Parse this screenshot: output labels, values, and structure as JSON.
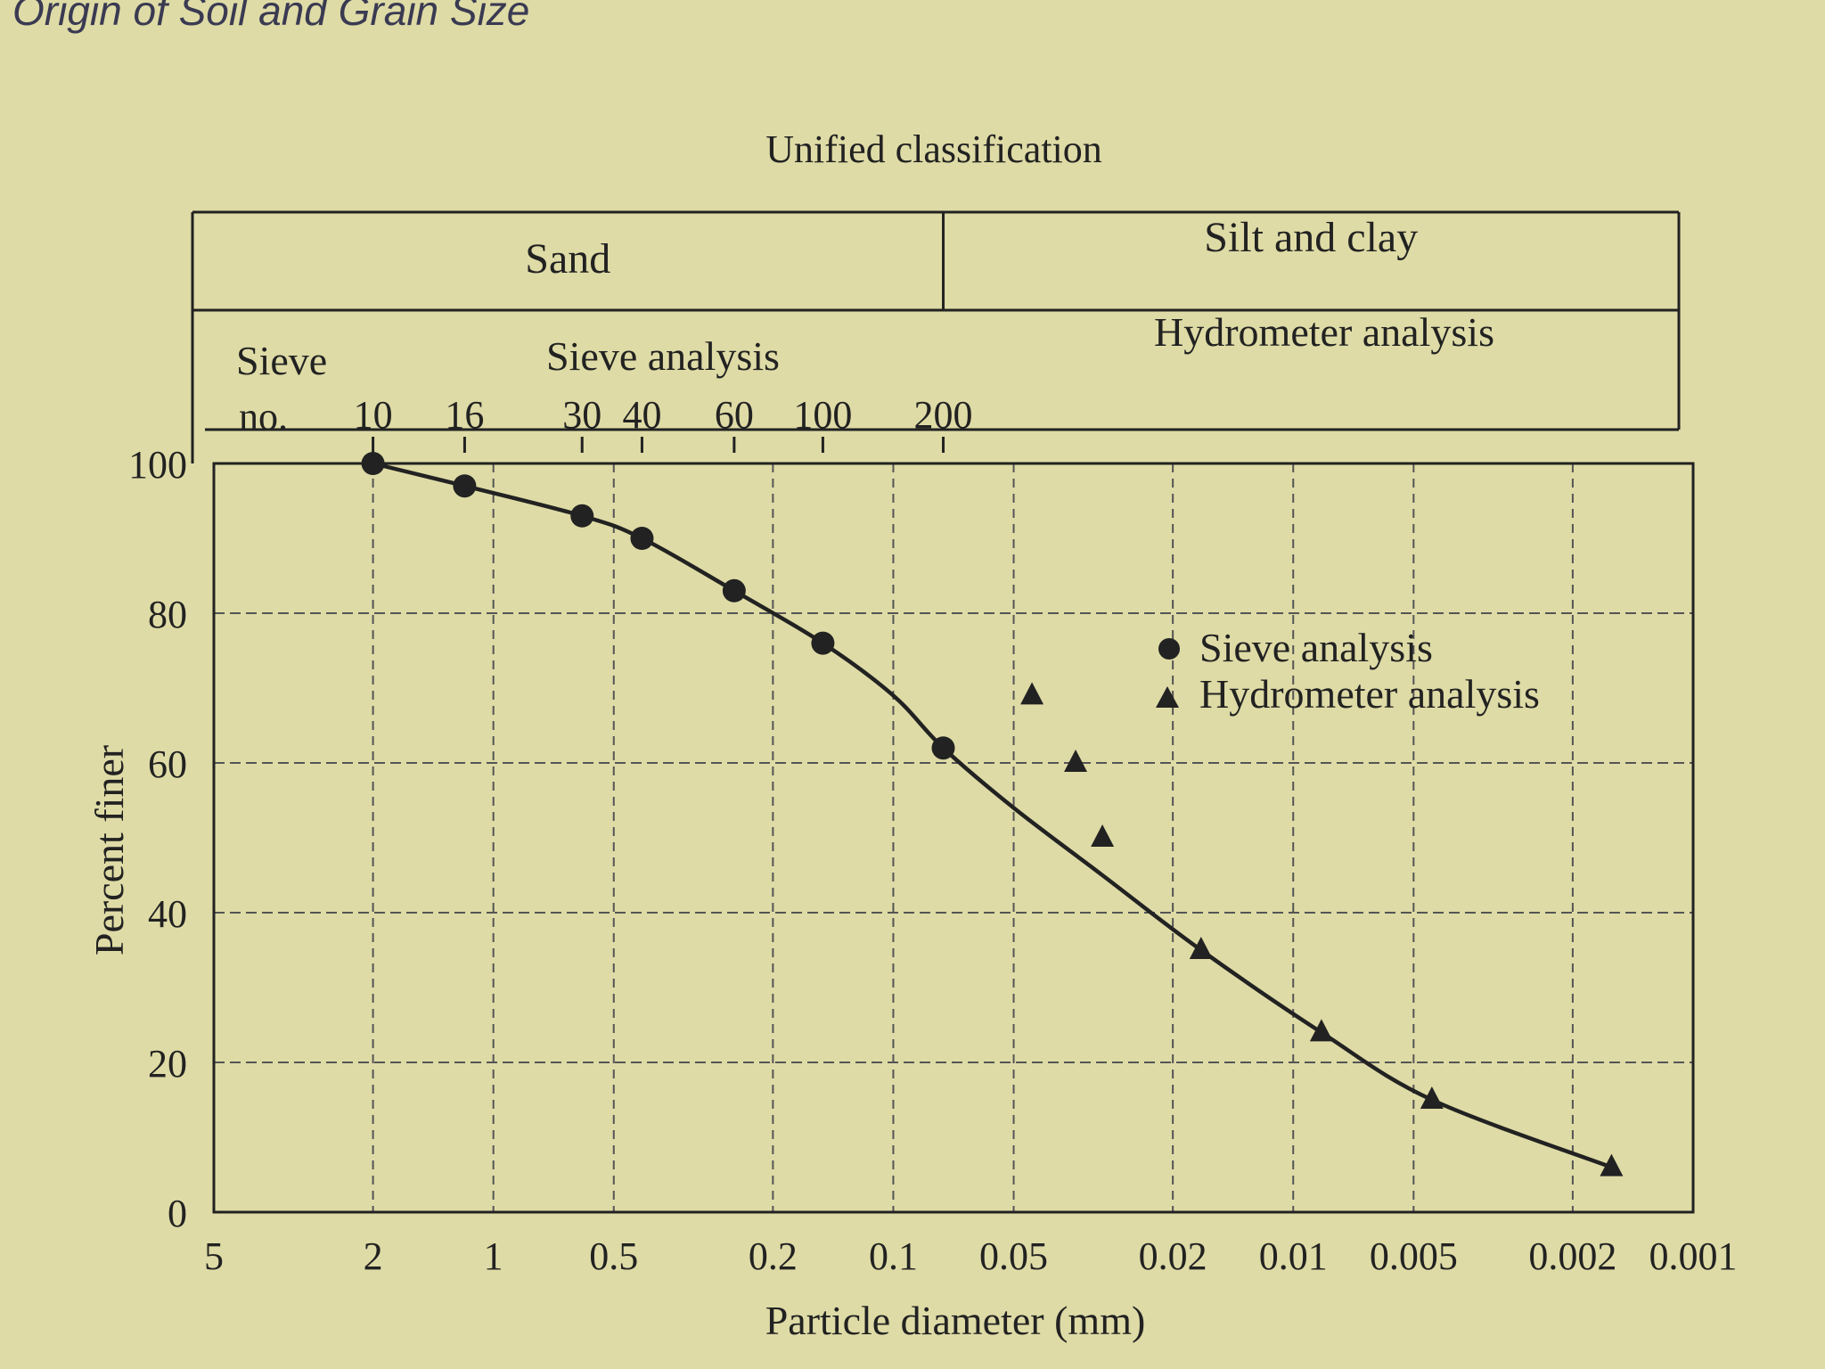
{
  "page_heading": "Origin of Soil and Grain Size",
  "colors": {
    "paper": "#dedba6",
    "ink": "#222222",
    "grid": "#555555"
  },
  "chart_data": {
    "type": "scatter",
    "title": "",
    "xlabel": "Particle diameter (mm)",
    "ylabel": "Percent finer",
    "x_scale": "log",
    "x_reversed": true,
    "xlim": [
      5,
      0.001
    ],
    "ylim": [
      0,
      100
    ],
    "x_ticks": [
      5,
      2,
      1,
      0.5,
      0.2,
      0.1,
      0.05,
      0.02,
      0.01,
      0.005,
      0.002,
      0.001
    ],
    "x_tick_labels": [
      "5",
      "2",
      "1",
      "0.5",
      "0.2",
      "0.1",
      "0.05",
      "0.02",
      "0.01",
      "0.005",
      "0.002",
      "0.001"
    ],
    "y_ticks": [
      0,
      20,
      40,
      60,
      80,
      100
    ],
    "y_tick_labels": [
      "0",
      "20",
      "40",
      "60",
      "80",
      "100"
    ],
    "grid": true,
    "legend_position": "right, upper middle",
    "classification": {
      "title": "Unified classification",
      "zones": [
        {
          "label": "Sand",
          "from": 5,
          "to": 0.075
        },
        {
          "label": "Silt and clay",
          "from": 0.075,
          "to": 0.001
        }
      ],
      "sieve_row_title": "Sieve",
      "sieve_no_label": "no.",
      "sieve_analysis_label": "Sieve analysis",
      "hydrometer_analysis_label": "Hydrometer analysis",
      "sieves": [
        {
          "no": "10",
          "opening_mm": 2.0
        },
        {
          "no": "16",
          "opening_mm": 1.18
        },
        {
          "no": "30",
          "opening_mm": 0.6
        },
        {
          "no": "40",
          "opening_mm": 0.425
        },
        {
          "no": "60",
          "opening_mm": 0.25
        },
        {
          "no": "100",
          "opening_mm": 0.15
        },
        {
          "no": "200",
          "opening_mm": 0.075
        }
      ]
    },
    "series": [
      {
        "name": "Sieve analysis",
        "marker": "circle",
        "x": [
          2.0,
          1.18,
          0.6,
          0.425,
          0.25,
          0.15,
          0.075
        ],
        "y": [
          100,
          97,
          93,
          90,
          83,
          76,
          62
        ]
      },
      {
        "name": "Hydrometer analysis",
        "marker": "triangle",
        "x": [
          0.045,
          0.035,
          0.03,
          0.017,
          0.0085,
          0.0045,
          0.0016
        ],
        "y": [
          69,
          60,
          50,
          35,
          24,
          15,
          6
        ]
      }
    ],
    "curve": {
      "x": [
        2.0,
        1.18,
        0.6,
        0.425,
        0.25,
        0.15,
        0.1,
        0.075,
        0.05,
        0.03,
        0.017,
        0.0085,
        0.0045,
        0.0016
      ],
      "y": [
        100,
        97,
        93,
        90,
        83,
        76,
        69,
        62,
        54,
        45,
        35,
        24,
        15,
        6
      ]
    }
  }
}
